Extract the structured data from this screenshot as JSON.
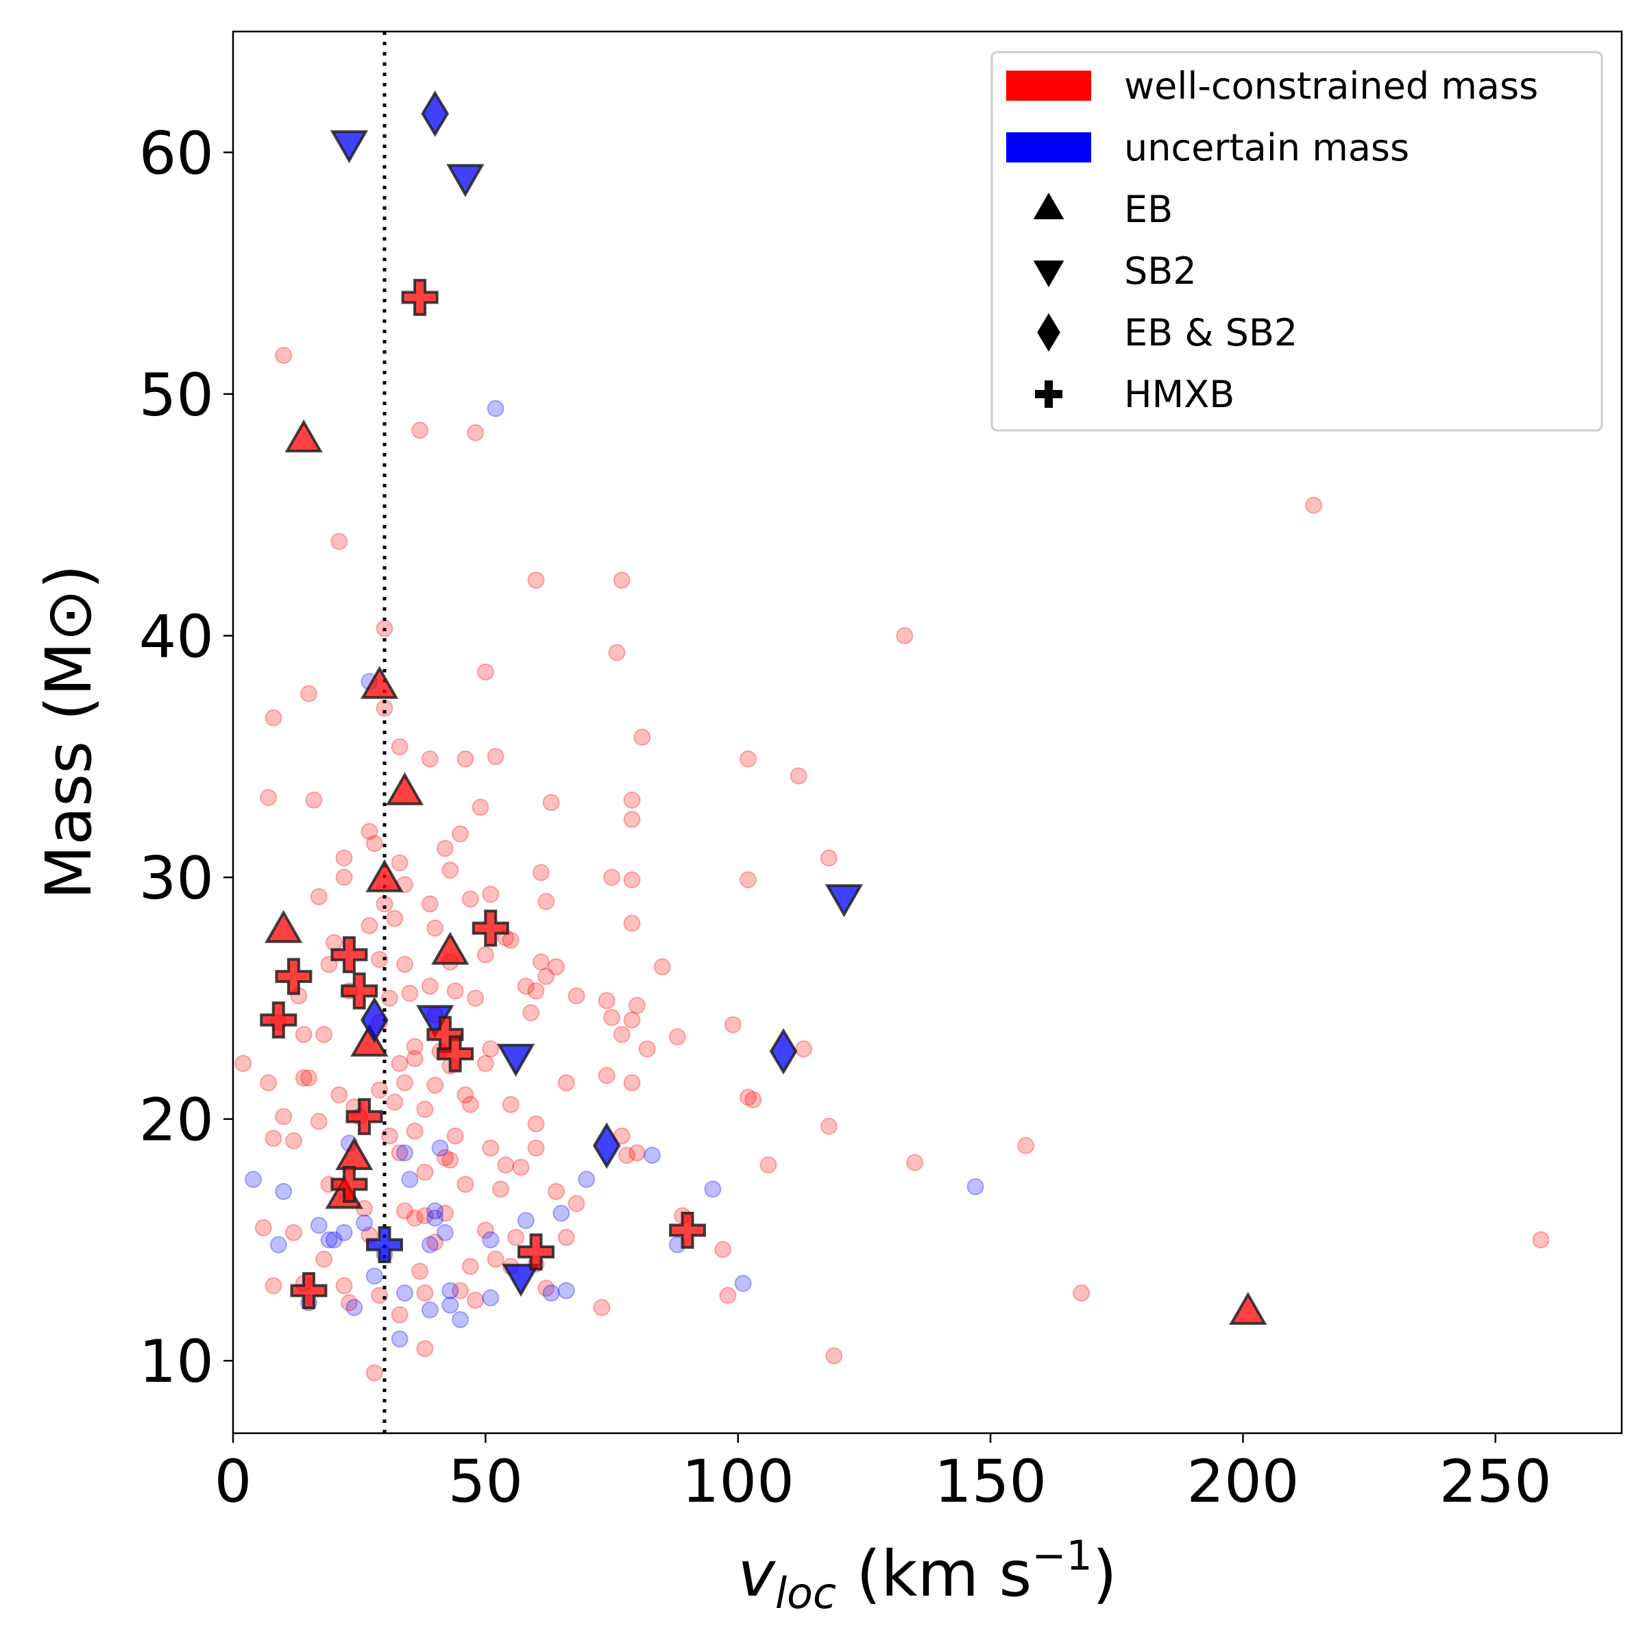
{
  "chart_data": {
    "type": "scatter",
    "xlabel": "v_loc (km s⁻¹)",
    "xlabel_parts": {
      "var": "v",
      "sub": "loc",
      "unit": " (km s",
      "sup": "−1",
      "close": ")"
    },
    "ylabel": "Mass (M⊙)",
    "xlim": [
      0,
      275
    ],
    "ylim": [
      7,
      65
    ],
    "xticks": [
      0,
      50,
      100,
      150,
      200,
      250
    ],
    "yticks": [
      10,
      20,
      30,
      40,
      50,
      60
    ],
    "reference_line": {
      "x": 30,
      "style": "dotted"
    },
    "colors": {
      "well": "#ff0000",
      "uncertain": "#0000ff"
    },
    "legend": {
      "position": "top-right",
      "items": [
        {
          "label": "well-constrained mass",
          "kind": "patch",
          "color": "#ff0000"
        },
        {
          "label": "uncertain mass",
          "kind": "patch",
          "color": "#0000ff"
        },
        {
          "label": "EB",
          "kind": "marker",
          "shape": "triangle-up"
        },
        {
          "label": "SB2",
          "kind": "marker",
          "shape": "triangle-down"
        },
        {
          "label": "EB & SB2",
          "kind": "marker",
          "shape": "diamond"
        },
        {
          "label": "HMXB",
          "kind": "marker",
          "shape": "plus"
        }
      ]
    },
    "background_points": {
      "well": [
        [
          10,
          51.6
        ],
        [
          8,
          36.6
        ],
        [
          7,
          33.3
        ],
        [
          15,
          37.6
        ],
        [
          16,
          33.2
        ],
        [
          21,
          43.9
        ],
        [
          17,
          29.2
        ],
        [
          22,
          30.8
        ],
        [
          22,
          30.0
        ],
        [
          20,
          27.3
        ],
        [
          19,
          26.4
        ],
        [
          23,
          25.3
        ],
        [
          13,
          25.1
        ],
        [
          9,
          24.0
        ],
        [
          14,
          23.5
        ],
        [
          18,
          23.5
        ],
        [
          2,
          22.3
        ],
        [
          7,
          21.5
        ],
        [
          14,
          21.7
        ],
        [
          15,
          21.7
        ],
        [
          21,
          21.0
        ],
        [
          24,
          20.5
        ],
        [
          25,
          20.1
        ],
        [
          10,
          20.1
        ],
        [
          17,
          19.9
        ],
        [
          8,
          19.2
        ],
        [
          12,
          19.1
        ],
        [
          30,
          40.3
        ],
        [
          30,
          37.0
        ],
        [
          27,
          31.9
        ],
        [
          28,
          31.4
        ],
        [
          33,
          35.4
        ],
        [
          33,
          30.6
        ],
        [
          34,
          29.7
        ],
        [
          30,
          28.9
        ],
        [
          32,
          28.3
        ],
        [
          27,
          28.0
        ],
        [
          29,
          26.6
        ],
        [
          34,
          26.4
        ],
        [
          35,
          25.2
        ],
        [
          31,
          25.0
        ],
        [
          29,
          24.0
        ],
        [
          33,
          22.3
        ],
        [
          34,
          21.5
        ],
        [
          36,
          22.5
        ],
        [
          29,
          21.2
        ],
        [
          32,
          20.7
        ],
        [
          37,
          48.5
        ],
        [
          39,
          34.9
        ],
        [
          42,
          31.2
        ],
        [
          45,
          31.8
        ],
        [
          43,
          30.3
        ],
        [
          39,
          28.9
        ],
        [
          40,
          27.9
        ],
        [
          43,
          26.5
        ],
        [
          39,
          25.5
        ],
        [
          44,
          25.3
        ],
        [
          40,
          24.3
        ],
        [
          41,
          22.8
        ],
        [
          43,
          22.2
        ],
        [
          40,
          21.4
        ],
        [
          46,
          21.0
        ],
        [
          38,
          20.4
        ],
        [
          44,
          19.3
        ],
        [
          47,
          20.6
        ],
        [
          43,
          18.3
        ],
        [
          48,
          48.4
        ],
        [
          50,
          38.5
        ],
        [
          46,
          34.9
        ],
        [
          52,
          35.0
        ],
        [
          49,
          32.9
        ],
        [
          51,
          29.3
        ],
        [
          47,
          29.1
        ],
        [
          50,
          26.8
        ],
        [
          54,
          27.5
        ],
        [
          55,
          27.4
        ],
        [
          48,
          25.0
        ],
        [
          51,
          22.9
        ],
        [
          50,
          22.3
        ],
        [
          55,
          20.6
        ],
        [
          51,
          18.8
        ],
        [
          54,
          18.1
        ],
        [
          60,
          42.3
        ],
        [
          63,
          33.1
        ],
        [
          61,
          30.2
        ],
        [
          62,
          29.0
        ],
        [
          61,
          26.5
        ],
        [
          64,
          26.3
        ],
        [
          58,
          25.5
        ],
        [
          62,
          25.9
        ],
        [
          60,
          25.3
        ],
        [
          59,
          24.4
        ],
        [
          60,
          19.8
        ],
        [
          60,
          18.8
        ],
        [
          68,
          25.1
        ],
        [
          66,
          21.5
        ],
        [
          77,
          42.3
        ],
        [
          76,
          39.3
        ],
        [
          81,
          35.8
        ],
        [
          79,
          33.2
        ],
        [
          79,
          32.4
        ],
        [
          75,
          30.0
        ],
        [
          79,
          29.9
        ],
        [
          79,
          28.1
        ],
        [
          74,
          24.9
        ],
        [
          80,
          24.7
        ],
        [
          75,
          24.2
        ],
        [
          79,
          24.1
        ],
        [
          77,
          23.5
        ],
        [
          82,
          22.9
        ],
        [
          74,
          21.8
        ],
        [
          79,
          21.5
        ],
        [
          77,
          19.3
        ],
        [
          78,
          18.5
        ],
        [
          80,
          18.6
        ],
        [
          85,
          26.3
        ],
        [
          88,
          23.4
        ],
        [
          102,
          34.9
        ],
        [
          102,
          29.9
        ],
        [
          99,
          23.9
        ],
        [
          102,
          20.9
        ],
        [
          103,
          20.8
        ],
        [
          106,
          18.1
        ],
        [
          112,
          34.2
        ],
        [
          113,
          22.9
        ],
        [
          118,
          30.8
        ],
        [
          118,
          19.7
        ],
        [
          119,
          10.2
        ],
        [
          133,
          40.0
        ],
        [
          135,
          18.2
        ],
        [
          157,
          18.9
        ],
        [
          168,
          12.8
        ],
        [
          214,
          45.4
        ],
        [
          259,
          15.0
        ],
        [
          28,
          9.5
        ],
        [
          38,
          10.5
        ],
        [
          33,
          11.9
        ],
        [
          29,
          12.7
        ],
        [
          23,
          12.4
        ],
        [
          22,
          13.1
        ],
        [
          18,
          14.2
        ],
        [
          14,
          13.2
        ],
        [
          8,
          13.1
        ],
        [
          12,
          15.3
        ],
        [
          6,
          15.5
        ],
        [
          27,
          15.2
        ],
        [
          34,
          16.2
        ],
        [
          36,
          15.9
        ],
        [
          38,
          16.0
        ],
        [
          42,
          16.1
        ],
        [
          40,
          14.9
        ],
        [
          37,
          13.7
        ],
        [
          38,
          12.8
        ],
        [
          45,
          12.9
        ],
        [
          48,
          12.5
        ],
        [
          47,
          13.9
        ],
        [
          50,
          15.4
        ],
        [
          52,
          14.2
        ],
        [
          56,
          15.1
        ],
        [
          55,
          13.9
        ],
        [
          60,
          14.0
        ],
        [
          62,
          13.0
        ],
        [
          66,
          15.1
        ],
        [
          68,
          16.5
        ],
        [
          64,
          17.0
        ],
        [
          57,
          18.0
        ],
        [
          53,
          17.1
        ],
        [
          46,
          17.3
        ],
        [
          42,
          18.4
        ],
        [
          38,
          17.8
        ],
        [
          33,
          18.6
        ],
        [
          31,
          19.3
        ],
        [
          36,
          19.5
        ],
        [
          36,
          23.0
        ],
        [
          73,
          12.2
        ],
        [
          98,
          12.7
        ],
        [
          97,
          14.6
        ],
        [
          89,
          16.0
        ],
        [
          19,
          17.3
        ],
        [
          26,
          16.3
        ]
      ],
      "uncertain": [
        [
          52,
          49.4
        ],
        [
          27,
          38.1
        ],
        [
          4,
          17.5
        ],
        [
          10,
          17.0
        ],
        [
          9,
          14.8
        ],
        [
          17,
          15.6
        ],
        [
          20,
          15.0
        ],
        [
          22,
          15.3
        ],
        [
          19,
          15.0
        ],
        [
          26,
          15.7
        ],
        [
          24,
          12.2
        ],
        [
          28,
          13.5
        ],
        [
          30,
          14.4
        ],
        [
          34,
          12.8
        ],
        [
          33,
          10.9
        ],
        [
          39,
          12.1
        ],
        [
          43,
          12.3
        ],
        [
          45,
          11.7
        ],
        [
          43,
          12.9
        ],
        [
          39,
          14.8
        ],
        [
          40,
          16.2
        ],
        [
          40,
          15.9
        ],
        [
          42,
          15.3
        ],
        [
          41,
          18.8
        ],
        [
          35,
          17.5
        ],
        [
          34,
          18.6
        ],
        [
          51,
          12.6
        ],
        [
          51,
          15.0
        ],
        [
          58,
          15.8
        ],
        [
          63,
          12.8
        ],
        [
          66,
          12.9
        ],
        [
          65,
          16.1
        ],
        [
          70,
          17.5
        ],
        [
          83,
          18.5
        ],
        [
          95,
          17.1
        ],
        [
          147,
          17.2
        ],
        [
          101,
          13.2
        ],
        [
          88,
          14.8
        ],
        [
          15,
          12.4
        ],
        [
          23,
          19.0
        ]
      ]
    },
    "series": [
      {
        "name": "EB",
        "group": "well-constrained mass",
        "marker": "triangle-up",
        "points": [
          [
            14,
            48.1
          ],
          [
            29,
            37.9
          ],
          [
            34,
            33.5
          ],
          [
            30,
            29.9
          ],
          [
            10,
            27.8
          ],
          [
            43,
            26.9
          ],
          [
            27,
            23.1
          ],
          [
            24,
            18.4
          ],
          [
            22,
            16.8
          ],
          [
            201,
            12.0
          ]
        ]
      },
      {
        "name": "SB2",
        "group": "uncertain mass",
        "marker": "triangle-down",
        "points": [
          [
            23,
            60.4
          ],
          [
            46,
            59.0
          ],
          [
            121,
            29.2
          ],
          [
            40,
            24.2
          ],
          [
            56,
            22.6
          ],
          [
            57,
            13.5
          ]
        ]
      },
      {
        "name": "EB & SB2",
        "group": "uncertain mass",
        "marker": "diamond",
        "points": [
          [
            40,
            61.6
          ],
          [
            28,
            24.1
          ],
          [
            109,
            22.8
          ],
          [
            74,
            18.9
          ]
        ]
      },
      {
        "name": "HMXB",
        "group": "well-constrained mass",
        "marker": "plus",
        "points": [
          [
            37,
            54.0
          ],
          [
            51,
            27.9
          ],
          [
            23,
            26.8
          ],
          [
            12,
            25.9
          ],
          [
            25,
            25.3
          ],
          [
            9,
            24.1
          ],
          [
            42,
            23.5
          ],
          [
            44,
            22.7
          ],
          [
            26,
            20.1
          ],
          [
            23,
            17.3
          ],
          [
            90,
            15.4
          ],
          [
            60,
            14.5
          ],
          [
            15,
            12.9
          ]
        ]
      },
      {
        "name": "HMXB",
        "group": "uncertain mass",
        "marker": "plus",
        "points": [
          [
            30,
            14.8
          ]
        ]
      }
    ]
  }
}
